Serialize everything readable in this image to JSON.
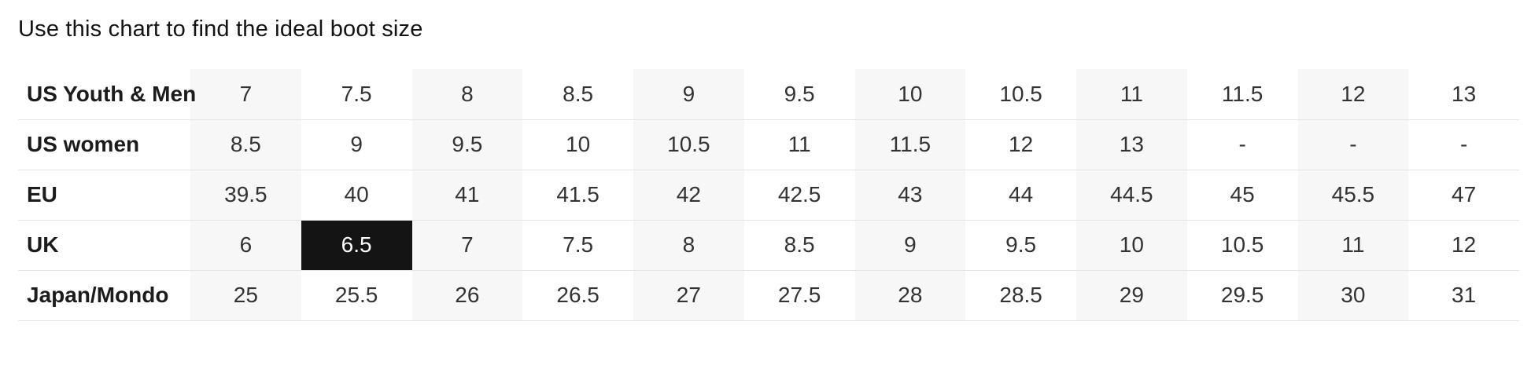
{
  "chart_data": {
    "type": "table",
    "title": "Use this chart to find the ideal boot size",
    "rows": [
      {
        "label": "US Youth & Men",
        "values": [
          "7",
          "7.5",
          "8",
          "8.5",
          "9",
          "9.5",
          "10",
          "10.5",
          "11",
          "11.5",
          "12",
          "13"
        ]
      },
      {
        "label": "US women",
        "values": [
          "8.5",
          "9",
          "9.5",
          "10",
          "10.5",
          "11",
          "11.5",
          "12",
          "13",
          "-",
          "-",
          "-"
        ]
      },
      {
        "label": "EU",
        "values": [
          "39.5",
          "40",
          "41",
          "41.5",
          "42",
          "42.5",
          "43",
          "44",
          "44.5",
          "45",
          "45.5",
          "47"
        ]
      },
      {
        "label": "UK",
        "values": [
          "6",
          "6.5",
          "7",
          "7.5",
          "8",
          "8.5",
          "9",
          "9.5",
          "10",
          "10.5",
          "11",
          "12"
        ]
      },
      {
        "label": "Japan/Mondo",
        "values": [
          "25",
          "25.5",
          "26",
          "26.5",
          "27",
          "27.5",
          "28",
          "28.5",
          "29",
          "29.5",
          "30",
          "31"
        ]
      }
    ],
    "highlighted_cell": {
      "row_label": "UK",
      "column_index": 1,
      "value": "6.5"
    },
    "layout": {
      "columns_count": 12,
      "striped_columns": "odd (1st, 3rd, 5th, 7th, 9th, 11th data columns)",
      "grid": "horizontal dividers only",
      "legend": "none"
    }
  },
  "colors": {
    "stripe_background": "#f7f7f7",
    "divider": "#e5e5e5",
    "highlight_background": "#141414",
    "highlight_text": "#ffffff",
    "row_label_text": "#1c1c1c",
    "value_text": "#333333",
    "title_text": "#131313",
    "page_background": "#ffffff"
  }
}
